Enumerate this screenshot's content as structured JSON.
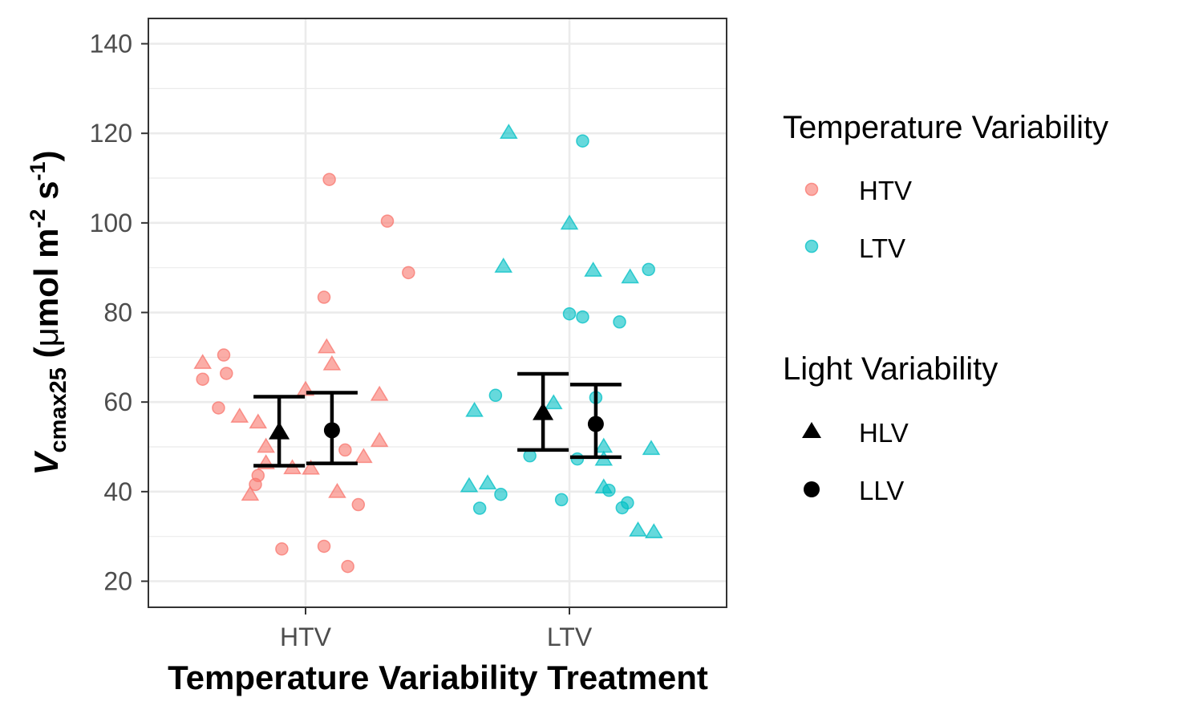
{
  "chart_data": {
    "type": "scatter",
    "xlabel": "Temperature Variability Treatment",
    "ylabel": {
      "prefix": "V",
      "prefix_sub": "cmax25",
      "unit_open": " (",
      "mu": "μ",
      "mol": "mol m",
      "sup1": "-2",
      "s": " s",
      "sup2": "-1",
      "close": ")"
    },
    "categories": [
      "HTV",
      "LTV"
    ],
    "ylim": [
      14,
      146
    ],
    "yticks": [
      20,
      40,
      60,
      80,
      100,
      120,
      140
    ],
    "grid": true,
    "colors": {
      "HTV": "#f8766d",
      "LTV": "#00bfc4",
      "summary": "#000000"
    },
    "legends": [
      {
        "title": "Temperature Variability",
        "entries": [
          {
            "label": "HTV",
            "color": "#f8766d",
            "shape": "circle"
          },
          {
            "label": "LTV",
            "color": "#00bfc4",
            "shape": "circle"
          }
        ]
      },
      {
        "title": "Light Variability",
        "entries": [
          {
            "label": "HLV",
            "color": "#000000",
            "shape": "triangle"
          },
          {
            "label": "LLV",
            "color": "#000000",
            "shape": "circle"
          }
        ]
      }
    ],
    "legend_position": "right",
    "points": [
      {
        "x": "HTV",
        "xoff": -0.39,
        "y": 68.8,
        "light": "HLV"
      },
      {
        "x": "HTV",
        "xoff": -0.39,
        "y": 65.1,
        "light": "LLV"
      },
      {
        "x": "HTV",
        "xoff": -0.31,
        "y": 70.5,
        "light": "LLV"
      },
      {
        "x": "HTV",
        "xoff": -0.3,
        "y": 66.4,
        "light": "LLV"
      },
      {
        "x": "HTV",
        "xoff": -0.33,
        "y": 58.7,
        "light": "LLV"
      },
      {
        "x": "HTV",
        "xoff": -0.25,
        "y": 56.8,
        "light": "HLV"
      },
      {
        "x": "HTV",
        "xoff": -0.18,
        "y": 55.5,
        "light": "HLV"
      },
      {
        "x": "HTV",
        "xoff": -0.15,
        "y": 50.1,
        "light": "HLV"
      },
      {
        "x": "HTV",
        "xoff": -0.15,
        "y": 46.4,
        "light": "HLV"
      },
      {
        "x": "HTV",
        "xoff": -0.18,
        "y": 43.6,
        "light": "LLV"
      },
      {
        "x": "HTV",
        "xoff": -0.19,
        "y": 41.6,
        "light": "LLV"
      },
      {
        "x": "HTV",
        "xoff": -0.21,
        "y": 39.4,
        "light": "HLV"
      },
      {
        "x": "HTV",
        "xoff": -0.09,
        "y": 27.2,
        "light": "LLV"
      },
      {
        "x": "HTV",
        "xoff": -0.05,
        "y": 45.3,
        "light": "HLV"
      },
      {
        "x": "HTV",
        "xoff": 0.0,
        "y": 62.8,
        "light": "HLV"
      },
      {
        "x": "HTV",
        "xoff": 0.02,
        "y": 45.2,
        "light": "HLV"
      },
      {
        "x": "HTV",
        "xoff": 0.07,
        "y": 83.4,
        "light": "LLV"
      },
      {
        "x": "HTV",
        "xoff": 0.08,
        "y": 72.3,
        "light": "HLV"
      },
      {
        "x": "HTV",
        "xoff": 0.1,
        "y": 68.5,
        "light": "HLV"
      },
      {
        "x": "HTV",
        "xoff": 0.07,
        "y": 27.8,
        "light": "LLV"
      },
      {
        "x": "HTV",
        "xoff": 0.09,
        "y": 109.7,
        "light": "LLV"
      },
      {
        "x": "HTV",
        "xoff": 0.12,
        "y": 40.0,
        "light": "HLV"
      },
      {
        "x": "HTV",
        "xoff": 0.15,
        "y": 49.3,
        "light": "LLV"
      },
      {
        "x": "HTV",
        "xoff": 0.16,
        "y": 23.3,
        "light": "LLV"
      },
      {
        "x": "HTV",
        "xoff": 0.2,
        "y": 37.1,
        "light": "LLV"
      },
      {
        "x": "HTV",
        "xoff": 0.22,
        "y": 47.8,
        "light": "HLV"
      },
      {
        "x": "HTV",
        "xoff": 0.28,
        "y": 61.7,
        "light": "HLV"
      },
      {
        "x": "HTV",
        "xoff": 0.28,
        "y": 51.4,
        "light": "HLV"
      },
      {
        "x": "HTV",
        "xoff": 0.31,
        "y": 100.4,
        "light": "LLV"
      },
      {
        "x": "HTV",
        "xoff": 0.39,
        "y": 88.9,
        "light": "LLV"
      },
      {
        "x": "LTV",
        "xoff": -0.38,
        "y": 41.3,
        "light": "HLV"
      },
      {
        "x": "LTV",
        "xoff": -0.36,
        "y": 58.1,
        "light": "HLV"
      },
      {
        "x": "LTV",
        "xoff": -0.34,
        "y": 36.3,
        "light": "LLV"
      },
      {
        "x": "LTV",
        "xoff": -0.31,
        "y": 41.9,
        "light": "HLV"
      },
      {
        "x": "LTV",
        "xoff": -0.28,
        "y": 61.5,
        "light": "LLV"
      },
      {
        "x": "LTV",
        "xoff": -0.26,
        "y": 39.4,
        "light": "LLV"
      },
      {
        "x": "LTV",
        "xoff": -0.25,
        "y": 90.3,
        "light": "HLV"
      },
      {
        "x": "LTV",
        "xoff": -0.23,
        "y": 120.2,
        "light": "HLV"
      },
      {
        "x": "LTV",
        "xoff": -0.15,
        "y": 48.0,
        "light": "LLV"
      },
      {
        "x": "LTV",
        "xoff": -0.06,
        "y": 59.8,
        "light": "HLV"
      },
      {
        "x": "LTV",
        "xoff": -0.03,
        "y": 38.2,
        "light": "LLV"
      },
      {
        "x": "LTV",
        "xoff": 0.0,
        "y": 99.9,
        "light": "HLV"
      },
      {
        "x": "LTV",
        "xoff": 0.0,
        "y": 79.7,
        "light": "LLV"
      },
      {
        "x": "LTV",
        "xoff": 0.03,
        "y": 47.3,
        "light": "LLV"
      },
      {
        "x": "LTV",
        "xoff": 0.05,
        "y": 118.3,
        "light": "LLV"
      },
      {
        "x": "LTV",
        "xoff": 0.05,
        "y": 79.0,
        "light": "LLV"
      },
      {
        "x": "LTV",
        "xoff": 0.09,
        "y": 89.4,
        "light": "HLV"
      },
      {
        "x": "LTV",
        "xoff": 0.1,
        "y": 61.0,
        "light": "LLV"
      },
      {
        "x": "LTV",
        "xoff": 0.13,
        "y": 50.1,
        "light": "HLV"
      },
      {
        "x": "LTV",
        "xoff": 0.13,
        "y": 47.2,
        "light": "HLV"
      },
      {
        "x": "LTV",
        "xoff": 0.13,
        "y": 41.0,
        "light": "HLV"
      },
      {
        "x": "LTV",
        "xoff": 0.15,
        "y": 40.3,
        "light": "LLV"
      },
      {
        "x": "LTV",
        "xoff": 0.19,
        "y": 77.9,
        "light": "LLV"
      },
      {
        "x": "LTV",
        "xoff": 0.2,
        "y": 36.4,
        "light": "LLV"
      },
      {
        "x": "LTV",
        "xoff": 0.22,
        "y": 37.5,
        "light": "LLV"
      },
      {
        "x": "LTV",
        "xoff": 0.23,
        "y": 87.9,
        "light": "HLV"
      },
      {
        "x": "LTV",
        "xoff": 0.26,
        "y": 31.4,
        "light": "HLV"
      },
      {
        "x": "LTV",
        "xoff": 0.3,
        "y": 89.6,
        "light": "LLV"
      },
      {
        "x": "LTV",
        "xoff": 0.31,
        "y": 49.6,
        "light": "HLV"
      },
      {
        "x": "LTV",
        "xoff": 0.32,
        "y": 31.0,
        "light": "HLV"
      }
    ],
    "summary": [
      {
        "x": "HTV",
        "light": "HLV",
        "dodge": -0.1,
        "mean": 53.3,
        "lower": 45.8,
        "upper": 61.2
      },
      {
        "x": "HTV",
        "light": "LLV",
        "dodge": 0.1,
        "mean": 53.7,
        "lower": 46.3,
        "upper": 62.1
      },
      {
        "x": "LTV",
        "light": "HLV",
        "dodge": -0.1,
        "mean": 57.6,
        "lower": 49.3,
        "upper": 66.3
      },
      {
        "x": "LTV",
        "light": "LLV",
        "dodge": 0.1,
        "mean": 55.1,
        "lower": 47.7,
        "upper": 63.9
      }
    ]
  }
}
